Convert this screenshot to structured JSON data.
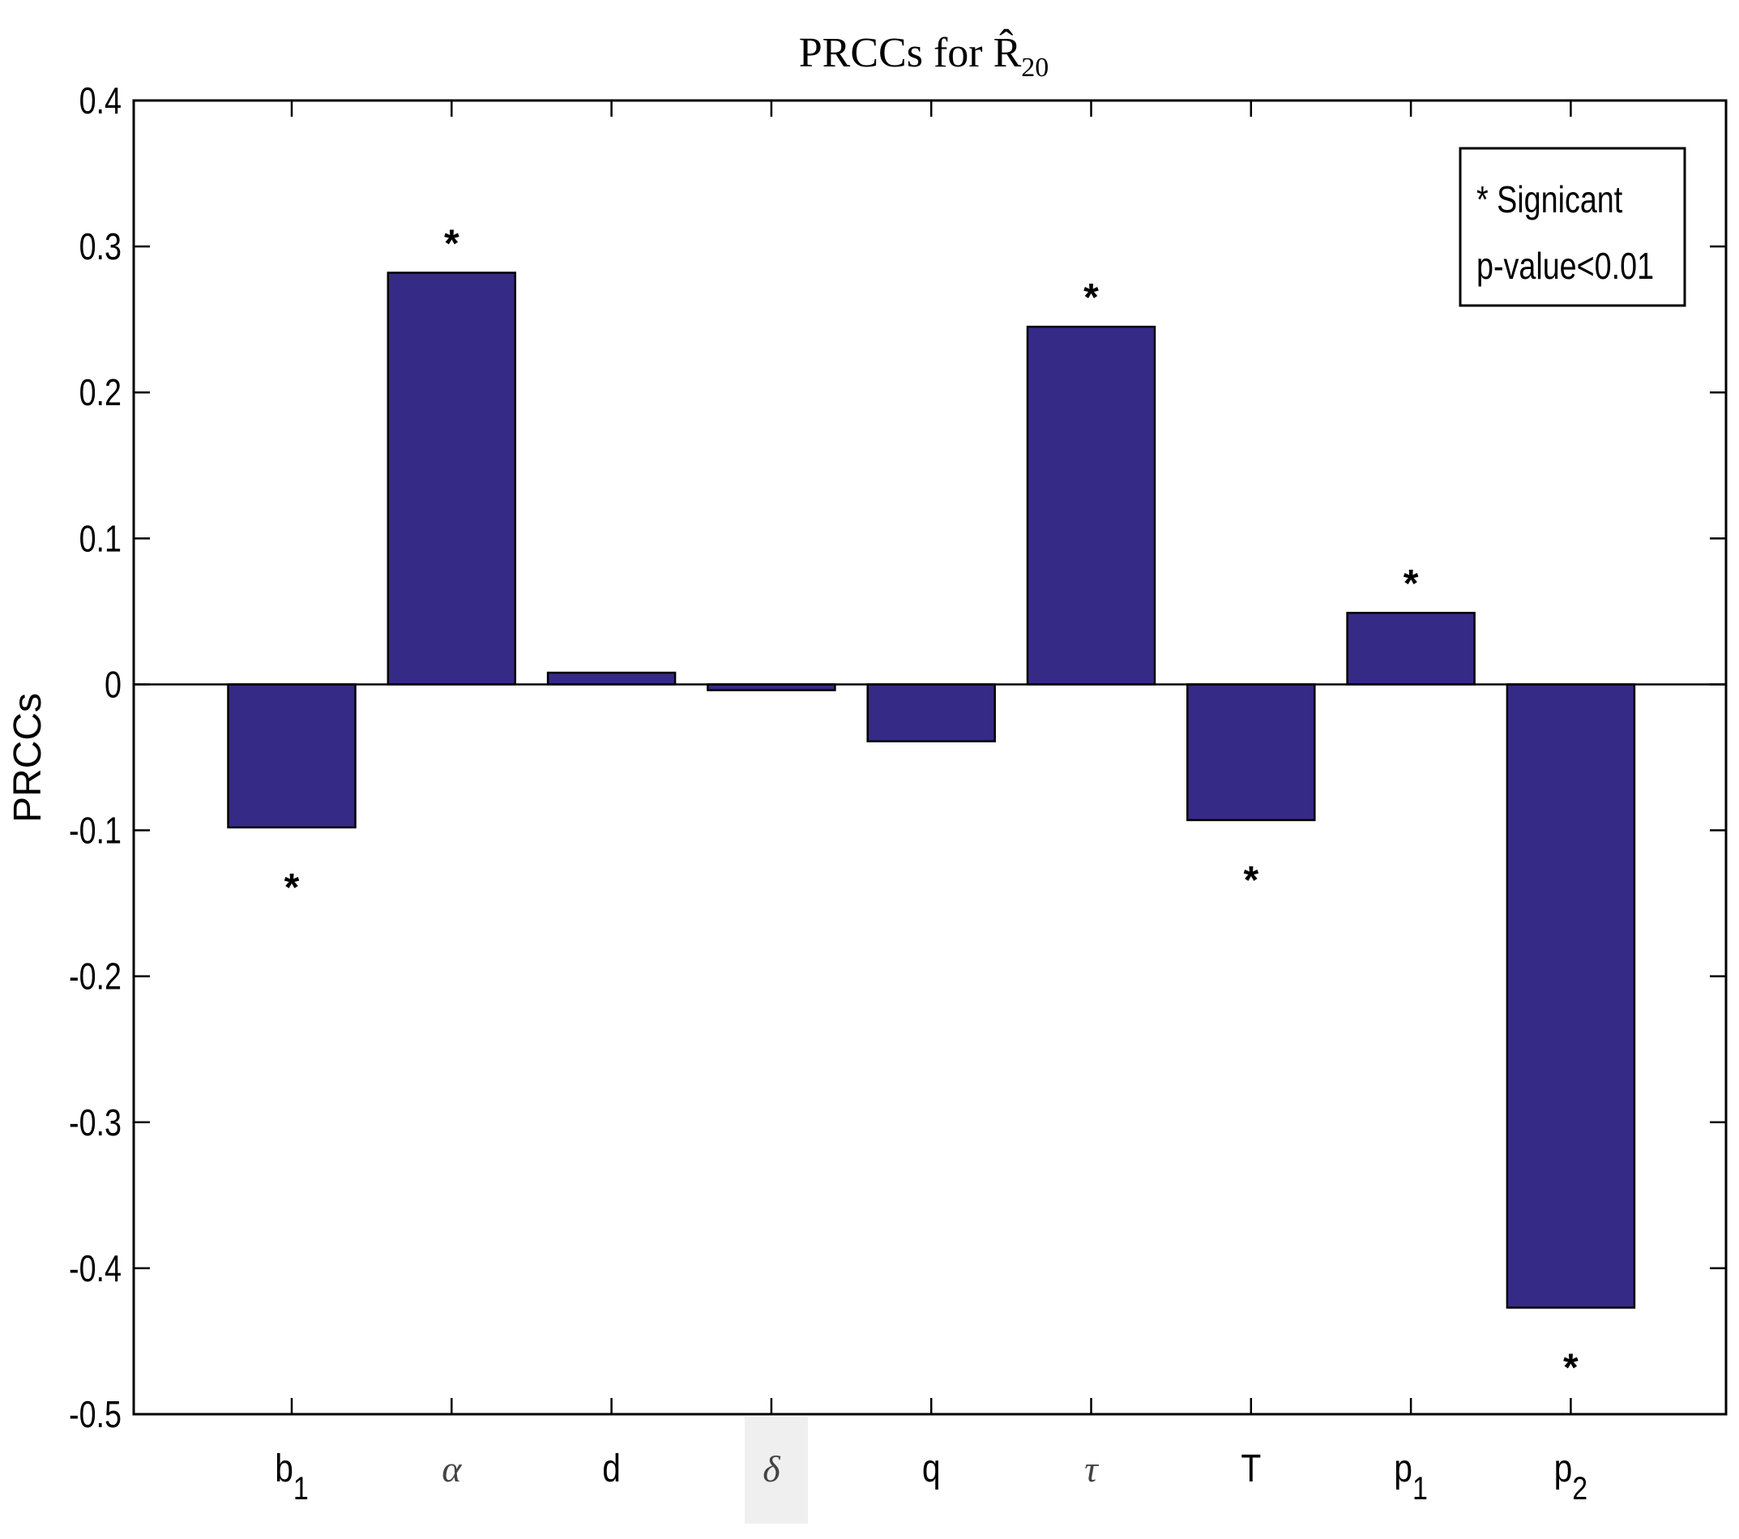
{
  "chart_data": {
    "type": "bar",
    "title": "PRCCs for R̂",
    "title_subscript": "20",
    "ylabel": "PRCCs",
    "xlabel": "",
    "ylim": [
      -0.5,
      0.4
    ],
    "yticks": [
      0.4,
      0.3,
      0.2,
      0.1,
      0,
      -0.1,
      -0.2,
      -0.3,
      -0.4,
      -0.5
    ],
    "ytick_labels": [
      "0.4",
      "0.3",
      "0.2",
      "0.1",
      "0",
      "-0.1",
      "-0.2",
      "-0.3",
      "-0.4",
      "-0.5"
    ],
    "categories": [
      {
        "base": "b",
        "sub": "1",
        "italic": false
      },
      {
        "base": "α",
        "sub": "",
        "italic": true
      },
      {
        "base": "d",
        "sub": "",
        "italic": false
      },
      {
        "base": "δ",
        "sub": "",
        "italic": true,
        "highlighted": true
      },
      {
        "base": "q",
        "sub": "",
        "italic": false
      },
      {
        "base": "τ",
        "sub": "",
        "italic": true
      },
      {
        "base": "T",
        "sub": "",
        "italic": false
      },
      {
        "base": "p",
        "sub": "1",
        "italic": false
      },
      {
        "base": "p",
        "sub": "2",
        "italic": false
      }
    ],
    "values": [
      -0.098,
      0.282,
      0.008,
      -0.004,
      -0.039,
      0.245,
      -0.093,
      0.049,
      -0.427
    ],
    "significant": [
      true,
      true,
      false,
      false,
      false,
      true,
      true,
      true,
      true
    ],
    "significance_marker": "*",
    "bar_color": "#352a86",
    "grid": false,
    "legend": {
      "position": "top-right",
      "lines": [
        "* Signicant",
        "p-value<0.01"
      ]
    }
  }
}
